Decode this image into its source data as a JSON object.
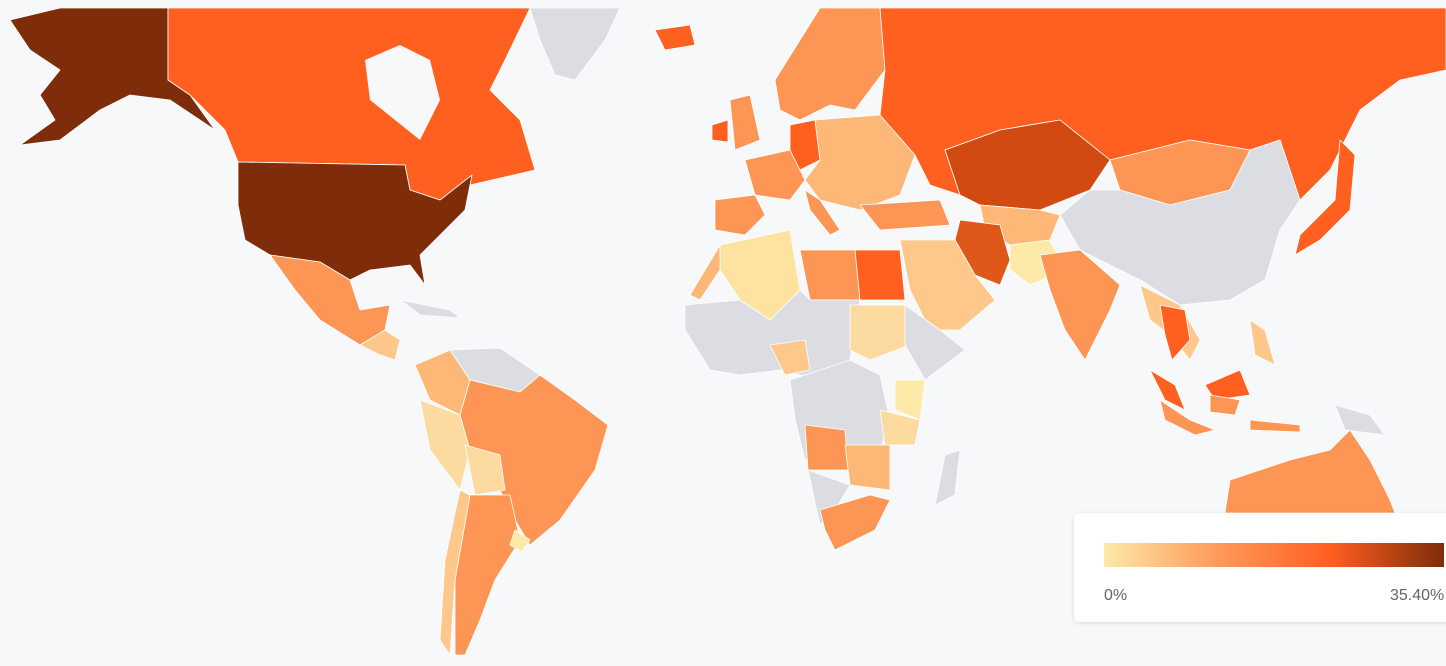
{
  "legend": {
    "min_label": "0%",
    "max_label": "35.40%",
    "colors": [
      "#fde9a8",
      "#fd9a5a",
      "#ff5f1f",
      "#7f2c0b"
    ]
  }
}
